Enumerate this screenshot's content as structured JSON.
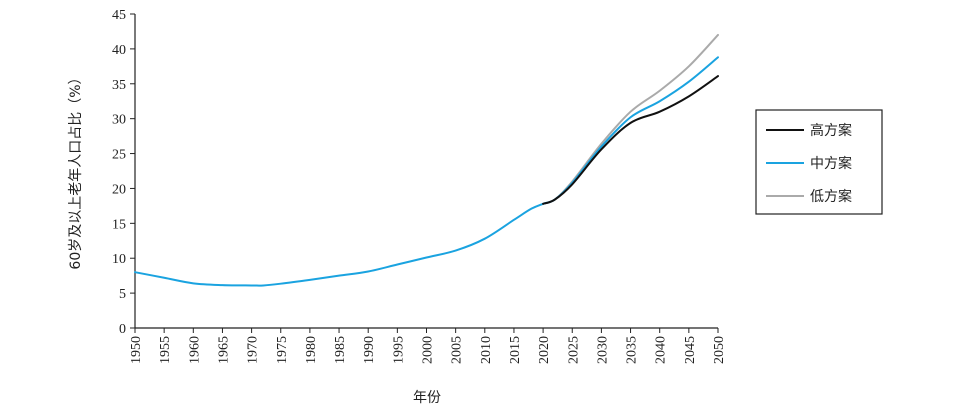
{
  "chart_data": {
    "type": "line",
    "title": "",
    "xlabel": "年份",
    "ylabel": "60岁及以上老年人口占比（%）",
    "ylim": [
      0,
      45
    ],
    "yticks": [
      0,
      5,
      10,
      15,
      20,
      25,
      30,
      35,
      40,
      45
    ],
    "xlim": [
      1950,
      2050
    ],
    "xticks": [
      1950,
      1955,
      1960,
      1965,
      1970,
      1975,
      1980,
      1985,
      1990,
      1995,
      2000,
      2005,
      2010,
      2015,
      2020,
      2025,
      2030,
      2035,
      2040,
      2045,
      2050
    ],
    "legend_position": "right",
    "grid": false,
    "series": [
      {
        "name": "低方案",
        "color": "#aaaaaa",
        "x": [
          2020,
          2022,
          2025,
          2030,
          2035,
          2040,
          2045,
          2050
        ],
        "values": [
          17.8,
          18.4,
          21.0,
          26.4,
          31.0,
          34.0,
          37.5,
          42.0
        ]
      },
      {
        "name": "中方案",
        "color": "#1aa3e0",
        "x": [
          1950,
          1955,
          1960,
          1965,
          1970,
          1972,
          1975,
          1980,
          1985,
          1990,
          1995,
          2000,
          2005,
          2010,
          2015,
          2018,
          2020,
          2022,
          2025,
          2030,
          2035,
          2040,
          2045,
          2050
        ],
        "values": [
          8.0,
          7.2,
          6.4,
          6.15,
          6.1,
          6.1,
          6.35,
          6.9,
          7.5,
          8.1,
          9.1,
          10.1,
          11.1,
          12.8,
          15.5,
          17.1,
          17.8,
          18.4,
          20.8,
          26.0,
          30.2,
          32.5,
          35.3,
          38.8
        ]
      },
      {
        "name": "高方案",
        "color": "#111111",
        "x": [
          2020,
          2022,
          2025,
          2030,
          2035,
          2040,
          2045,
          2050
        ],
        "values": [
          17.8,
          18.4,
          20.6,
          25.6,
          29.4,
          31.0,
          33.2,
          36.1
        ]
      }
    ],
    "legend": [
      "高方案",
      "中方案",
      "低方案"
    ]
  }
}
